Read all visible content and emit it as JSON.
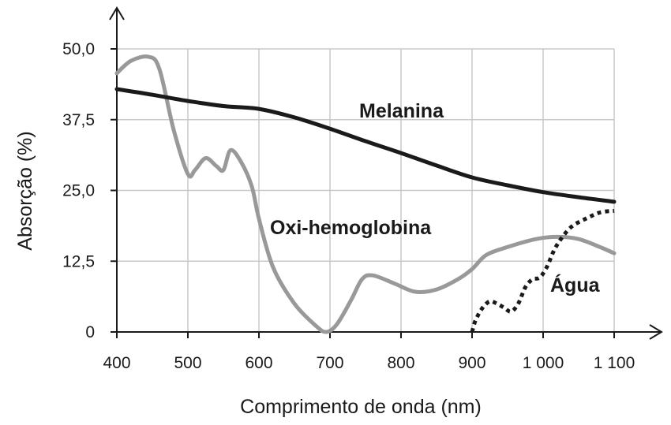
{
  "chart_data": {
    "type": "line",
    "title": "",
    "xlabel": "Comprimento de onda (nm)",
    "ylabel": "Absorção (%)",
    "xlim": [
      400,
      1100
    ],
    "ylim": [
      0,
      50
    ],
    "x_ticks": [
      400,
      500,
      600,
      700,
      800,
      900,
      1000,
      1100
    ],
    "x_tick_labels": [
      "400",
      "500",
      "600",
      "700",
      "800",
      "900",
      "1 000",
      "1 100"
    ],
    "y_ticks": [
      0,
      12.5,
      25,
      37.5,
      50
    ],
    "y_tick_labels": [
      "0",
      "12,5",
      "25,0",
      "37,5",
      "50,0"
    ],
    "grid": true,
    "series": [
      {
        "name": "Melanina",
        "color": "#1a1a1a",
        "style": "solid",
        "x": [
          400,
          450,
          500,
          550,
          600,
          650,
          700,
          750,
          800,
          850,
          900,
          950,
          1000,
          1050,
          1100
        ],
        "y": [
          42.9,
          41.9,
          40.8,
          39.9,
          39.4,
          37.9,
          35.9,
          33.7,
          31.6,
          29.4,
          27.3,
          25.9,
          24.7,
          23.8,
          23.0
        ]
      },
      {
        "name": "Oxi-hemoglobina",
        "color": "#999999",
        "style": "solid",
        "x": [
          400,
          420,
          445,
          460,
          480,
          500,
          510,
          525,
          540,
          550,
          560,
          575,
          590,
          600,
          620,
          650,
          680,
          695,
          710,
          730,
          745,
          760,
          790,
          820,
          850,
          880,
          900,
          920,
          950,
          990,
          1020,
          1050,
          1080,
          1100
        ],
        "y": [
          45.7,
          47.9,
          48.6,
          46.4,
          35.7,
          27.9,
          28.6,
          30.7,
          29.3,
          28.6,
          32.1,
          30.0,
          25.7,
          20.0,
          11.4,
          5.0,
          1.1,
          0.0,
          1.4,
          5.7,
          9.3,
          10.0,
          8.6,
          7.1,
          7.5,
          9.3,
          11.1,
          13.6,
          15.0,
          16.4,
          16.8,
          16.4,
          15.0,
          13.9
        ]
      },
      {
        "name": "Água",
        "color": "#1a1a1a",
        "style": "dotted",
        "x": [
          900,
          905,
          915,
          925,
          935,
          945,
          955,
          965,
          975,
          985,
          995,
          1005,
          1015,
          1025,
          1040,
          1060,
          1080,
          1100
        ],
        "y": [
          0.0,
          2.1,
          4.3,
          5.4,
          5.0,
          4.3,
          3.6,
          5.0,
          7.9,
          9.3,
          9.6,
          11.4,
          14.3,
          16.4,
          18.6,
          20.0,
          21.1,
          21.4
        ]
      }
    ]
  }
}
